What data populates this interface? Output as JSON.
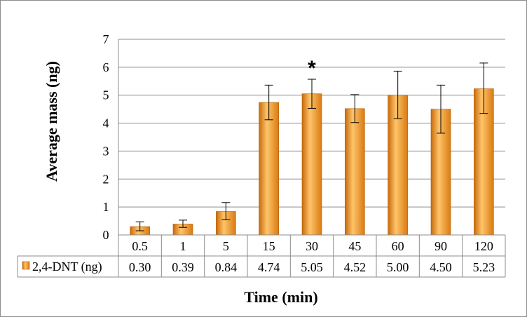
{
  "chart_data": {
    "type": "bar",
    "xlabel": "Time (min)",
    "ylabel": "Average mass (ng)",
    "ylim": [
      0,
      7
    ],
    "yticks": [
      0,
      1,
      2,
      3,
      4,
      5,
      6,
      7
    ],
    "grid": true,
    "categories": [
      "0.5",
      "1",
      "5",
      "15",
      "30",
      "45",
      "60",
      "90",
      "120"
    ],
    "series": [
      {
        "name": "2,4-DNT (ng)",
        "values": [
          0.3,
          0.39,
          0.84,
          4.74,
          5.05,
          4.52,
          5.0,
          4.5,
          5.23
        ],
        "error_low": [
          0.15,
          0.12,
          0.3,
          0.62,
          0.52,
          0.5,
          0.84,
          0.86,
          0.88
        ],
        "error_high": [
          0.17,
          0.14,
          0.32,
          0.62,
          0.52,
          0.5,
          0.86,
          0.86,
          0.92
        ],
        "labels": [
          "0.30",
          "0.39",
          "0.84",
          "4.74",
          "5.05",
          "4.52",
          "5.00",
          "4.50",
          "5.23"
        ],
        "color": "#f0961e"
      }
    ],
    "annotations": [
      {
        "category": "30",
        "text": "*"
      }
    ],
    "data_table": true,
    "legend": "in-table"
  }
}
